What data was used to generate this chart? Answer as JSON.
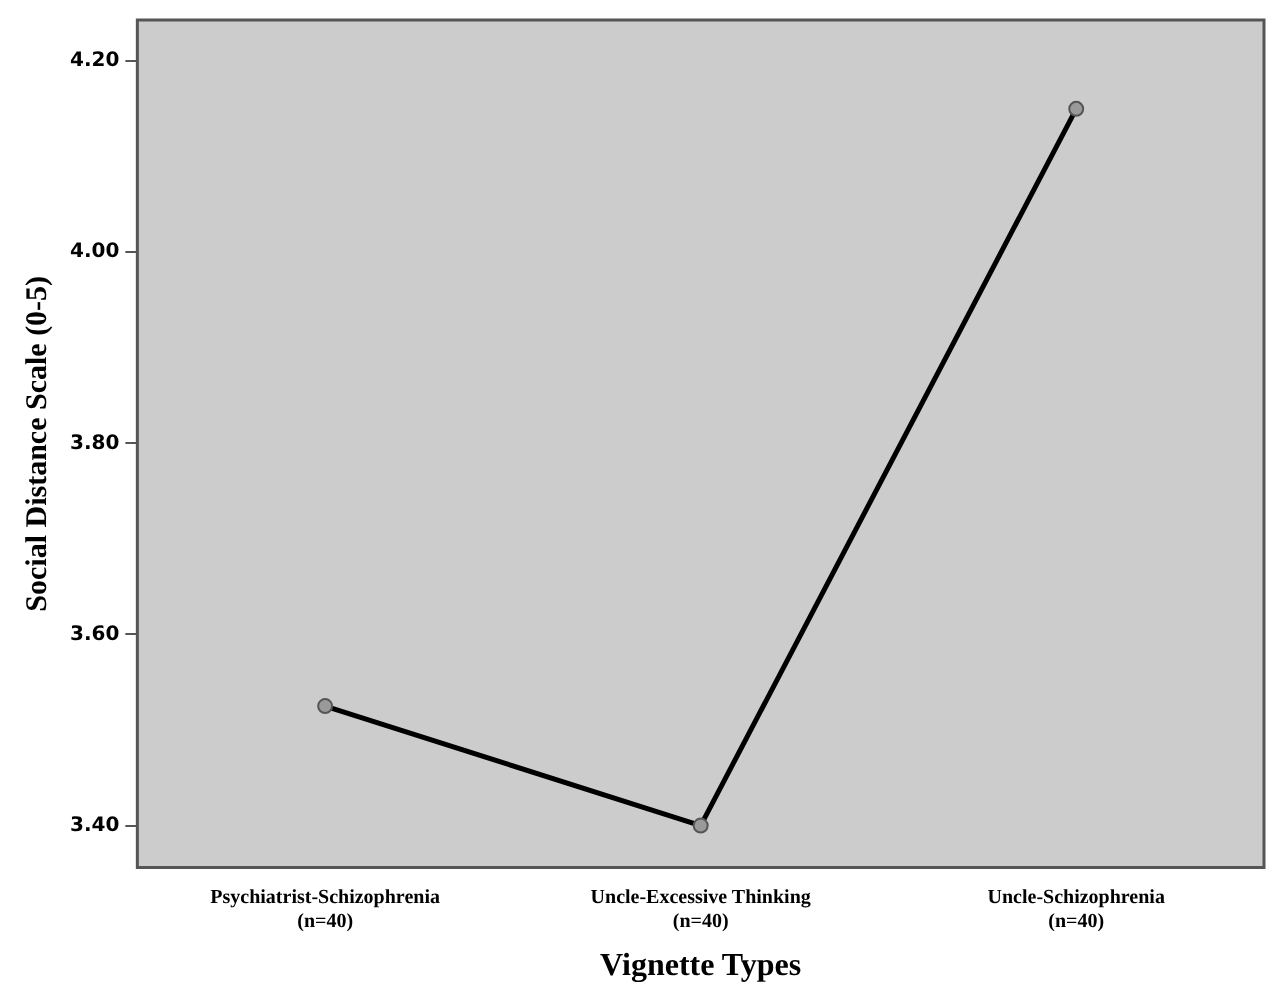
{
  "chart_data": {
    "type": "line",
    "xlabel": "Vignette Types",
    "ylabel": "Social Distance Scale (0-5)",
    "categories": [
      "Psychiatrist-Schizophrenia\n(n=40)",
      "Uncle-Excessive Thinking\n(n=40)",
      "Uncle-Schizophrenia\n(n=40)"
    ],
    "series": [
      {
        "color": "#000000",
        "values": [
          3.525,
          3.4,
          4.15
        ]
      }
    ],
    "ylim": [
      3.356,
      4.243
    ],
    "yticks": [
      {
        "value": 3.4,
        "label": "3.40"
      },
      {
        "value": 3.6,
        "label": "3.60"
      },
      {
        "value": 3.8,
        "label": "3.80"
      },
      {
        "value": 4.0,
        "label": "4.00"
      },
      {
        "value": 4.2,
        "label": "4.20"
      }
    ],
    "grid": false,
    "legend": false,
    "marker": "circle",
    "line_style": "solid"
  }
}
